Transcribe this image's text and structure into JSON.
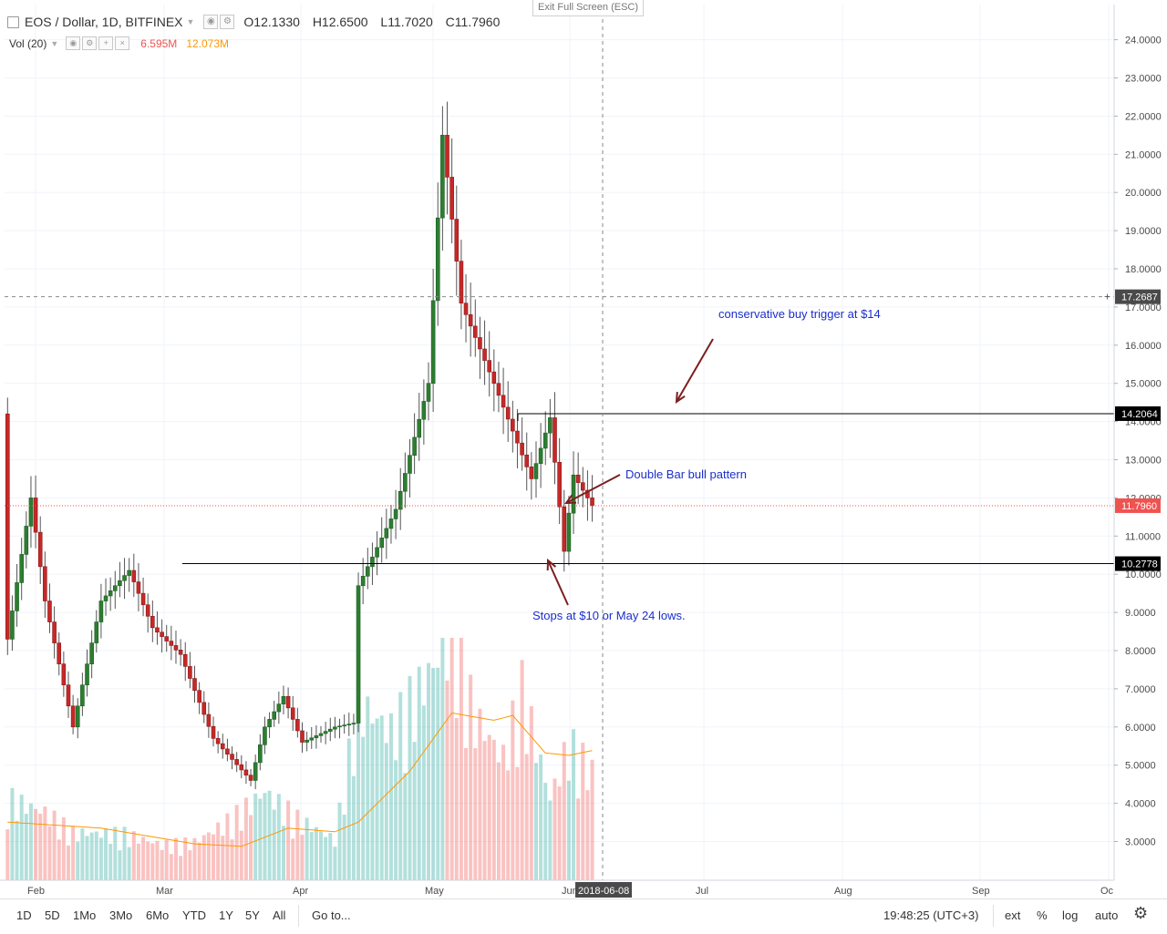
{
  "legend": {
    "symbol": "EOS / Dollar, 1D, BITFINEX",
    "open": "O12.1330",
    "high": "H12.6500",
    "low": "L11.7020",
    "close": "C11.7960"
  },
  "volume": {
    "label": "Vol (20)",
    "value1": "6.595M",
    "value2": "12.073M",
    "color_down": "#ef5350",
    "color_up": "#26a69a",
    "color_ma": "#ff9800"
  },
  "exit_label": "Exit Full Screen (ESC)",
  "toolbar": {
    "ranges": [
      "1D",
      "5D",
      "1Mo",
      "3Mo",
      "6Mo",
      "YTD",
      "1Y",
      "5Y",
      "All"
    ],
    "goto": "Go to...",
    "time": "19:48:25 (UTC+3)",
    "ext": "ext",
    "percent": "%",
    "log": "log",
    "auto": "auto"
  },
  "chart_data": {
    "type": "candlestick",
    "symbol": "EOS / Dollar",
    "interval": "1D",
    "exchange": "BITFINEX",
    "y_ticks": [
      3,
      4,
      5,
      6,
      7,
      8,
      9,
      10,
      11,
      12,
      13,
      14,
      15,
      16,
      17,
      18,
      19,
      20,
      21,
      22,
      23,
      24
    ],
    "x_ticks": [
      "Feb",
      "Mar",
      "Apr",
      "May",
      "Jun",
      "Jul",
      "Aug",
      "Sep",
      "Oc"
    ],
    "crosshair_date": "2018-06-08",
    "crosshair_price": "17.2687",
    "last_price": "11.7960",
    "horizontal_lines": [
      {
        "value": 14.2064,
        "label": "14.2064"
      },
      {
        "value": 10.2778,
        "label": "10.2778"
      }
    ],
    "annotations": [
      "conservative buy trigger at $14",
      "Double Bar bull pattern",
      "Stops at $10 or May 24 lows."
    ],
    "anchors": [
      [
        0,
        14.2,
        8.3
      ],
      [
        5,
        14.5,
        12.0
      ],
      [
        8,
        11.2,
        9.3
      ],
      [
        14,
        8.4,
        6.0
      ],
      [
        20,
        8.8,
        9.3
      ],
      [
        26,
        9.8,
        10.1
      ],
      [
        31,
        9.2,
        8.6
      ],
      [
        37,
        8.3,
        7.9
      ],
      [
        44,
        7.8,
        5.7
      ],
      [
        52,
        5.3,
        4.6
      ],
      [
        55,
        5.9,
        6.0
      ],
      [
        59,
        7.0,
        6.8
      ],
      [
        63,
        5.9,
        5.6
      ],
      [
        70,
        5.7,
        6.0
      ],
      [
        74,
        6.0,
        6.1
      ],
      [
        75,
        8.9,
        9.7
      ],
      [
        83,
        8.9,
        11.7
      ],
      [
        90,
        14.0,
        15.0
      ],
      [
        93,
        19.0,
        21.5
      ],
      [
        97,
        18.8,
        17.1
      ],
      [
        104,
        17.8,
        15.0
      ],
      [
        112,
        12.6,
        12.5
      ],
      [
        116,
        13.5,
        14.1
      ],
      [
        119,
        11.0,
        10.6
      ],
      [
        121,
        12.0,
        12.6
      ],
      [
        125,
        12.2,
        11.8
      ]
    ],
    "volume_anchors": [
      [
        0,
        6.0
      ],
      [
        8,
        5.0
      ],
      [
        14,
        3.5
      ],
      [
        25,
        3.4
      ],
      [
        33,
        2.6
      ],
      [
        40,
        2.8
      ],
      [
        48,
        4.5
      ],
      [
        55,
        6.5
      ],
      [
        62,
        4.5
      ],
      [
        70,
        3.0
      ],
      [
        75,
        13.0
      ],
      [
        82,
        11.0
      ],
      [
        88,
        14.0
      ],
      [
        95,
        18.0
      ],
      [
        100,
        12.0
      ],
      [
        106,
        9.0
      ],
      [
        110,
        14.0
      ],
      [
        116,
        6.0
      ],
      [
        120,
        10.0
      ],
      [
        125,
        8.0
      ]
    ],
    "volume_ma_anchors": [
      [
        0,
        4.8
      ],
      [
        20,
        4.3
      ],
      [
        40,
        3.0
      ],
      [
        50,
        2.8
      ],
      [
        60,
        4.3
      ],
      [
        70,
        4.0
      ],
      [
        75,
        4.8
      ],
      [
        86,
        9.0
      ],
      [
        95,
        13.8
      ],
      [
        104,
        13.2
      ],
      [
        108,
        13.6
      ],
      [
        115,
        10.5
      ],
      [
        120,
        10.3
      ],
      [
        125,
        10.7
      ]
    ],
    "volume_ymax": 20
  }
}
